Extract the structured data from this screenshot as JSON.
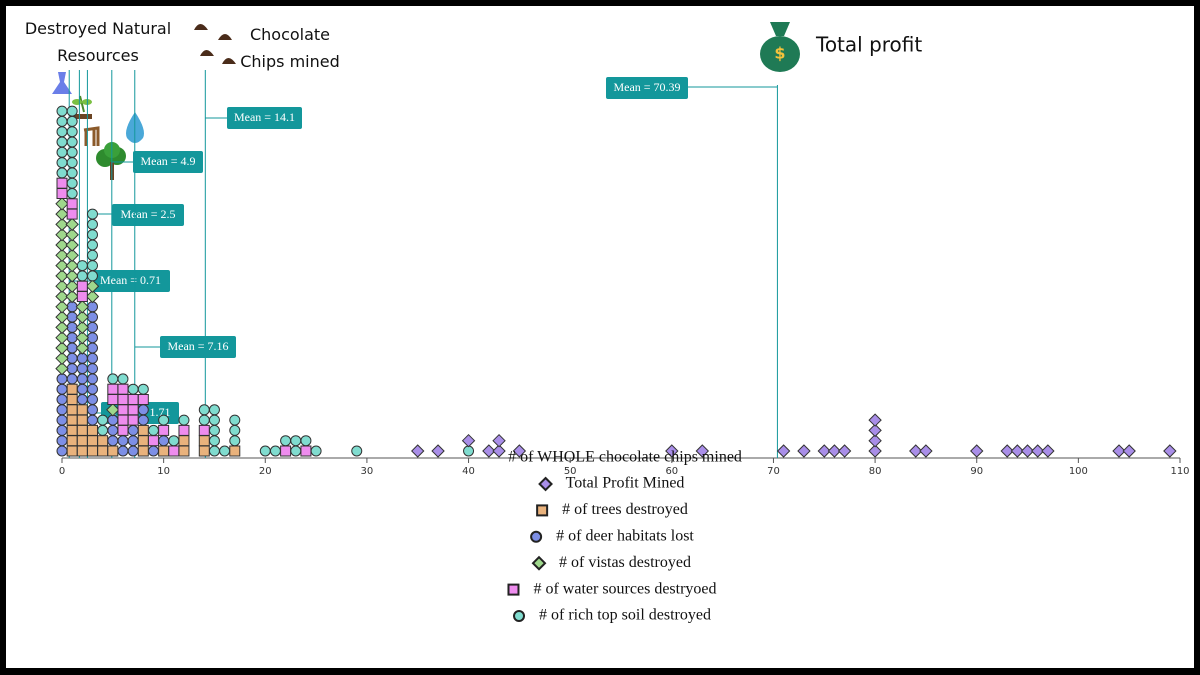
{
  "chart_data": {
    "type": "dotplot",
    "headers": [
      "Destroyed Natural Resources",
      "Chocolate Chips mined",
      "Total profit"
    ],
    "xlabel": "# of WHOLE chocolate chips mined",
    "xlim": [
      0,
      110
    ],
    "xticks": [
      0,
      10,
      20,
      30,
      40,
      50,
      60,
      70,
      80,
      90,
      100,
      110
    ],
    "legend": "bottom",
    "series": [
      {
        "name": "Total Profit Mined",
        "color": "#a98ee8",
        "marker": "diamond",
        "values": [
          35,
          37,
          40,
          42,
          43,
          43,
          45,
          60,
          63,
          71,
          73,
          75,
          76,
          77,
          80,
          80,
          80,
          80,
          84,
          85,
          90,
          93,
          94,
          95,
          96,
          97,
          104,
          105,
          109
        ]
      },
      {
        "name": "# of trees destroyed",
        "color": "#e9b27c",
        "marker": "square",
        "values": [
          1,
          1,
          1,
          1,
          1,
          1,
          1,
          2,
          2,
          2,
          2,
          2,
          3,
          3,
          3,
          4,
          4,
          5,
          8,
          8,
          8,
          10,
          12,
          12,
          14,
          14,
          17
        ]
      },
      {
        "name": "# of deer habitats lost",
        "color": "#7d8fe6",
        "marker": "circle",
        "values": [
          0,
          0,
          0,
          0,
          0,
          0,
          0,
          0,
          1,
          1,
          1,
          1,
          1,
          1,
          1,
          1,
          2,
          2,
          2,
          2,
          2,
          3,
          3,
          3,
          3,
          3,
          3,
          3,
          3,
          3,
          3,
          3,
          3,
          5,
          5,
          5,
          6,
          6,
          7,
          7,
          7,
          8,
          8,
          9,
          10
        ]
      },
      {
        "name": "# of vistas destroyed",
        "color": "#9fd88c",
        "marker": "diamond",
        "values": [
          0,
          0,
          0,
          0,
          0,
          0,
          0,
          0,
          0,
          0,
          0,
          0,
          0,
          0,
          0,
          0,
          0,
          1,
          1,
          1,
          1,
          1,
          1,
          1,
          1,
          2,
          2,
          2,
          2,
          2,
          3,
          3,
          5
        ]
      },
      {
        "name": "# of water sources destryoed",
        "color": "#ee8cee",
        "marker": "square",
        "values": [
          0,
          0,
          1,
          1,
          2,
          2,
          5,
          5,
          6,
          6,
          6,
          6,
          6,
          7,
          7,
          7,
          8,
          9,
          10,
          11,
          12,
          14,
          22,
          24
        ]
      },
      {
        "name": "# of rich top soil destroyed",
        "color": "#80dccf",
        "marker": "circle",
        "values": [
          0,
          0,
          0,
          0,
          0,
          0,
          0,
          1,
          1,
          1,
          1,
          1,
          1,
          1,
          1,
          1,
          2,
          2,
          3,
          3,
          3,
          3,
          3,
          3,
          3,
          4,
          4,
          5,
          6,
          7,
          8,
          9,
          10,
          11,
          12,
          14,
          14,
          15,
          15,
          15,
          15,
          15,
          16,
          17,
          17,
          17,
          20,
          21,
          22,
          23,
          23,
          24,
          25,
          29,
          40
        ]
      }
    ],
    "means": [
      {
        "value": 70.39,
        "label": "Mean = 70.39"
      },
      {
        "value": 14.1,
        "label": "Mean = 14.1"
      },
      {
        "value": 4.9,
        "label": "Mean = 4.9"
      },
      {
        "value": 2.5,
        "label": "Mean = 2.5"
      },
      {
        "value": 0.71,
        "label": "Mean = 0.71"
      },
      {
        "value": 7.16,
        "label": "Mean = 7.16"
      },
      {
        "value": 1.71,
        "label": "Mean = 1.71"
      }
    ],
    "mean_color": "#13979b"
  }
}
